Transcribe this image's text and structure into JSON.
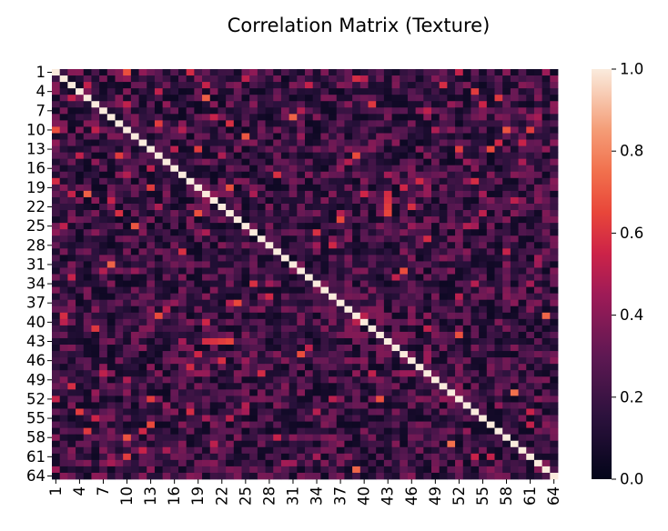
{
  "chart_data": {
    "type": "heatmap",
    "title": "Correlation Matrix (Texture)",
    "xlabel": "",
    "ylabel": "",
    "size": 64,
    "row_labels_shown": [
      "1",
      "4",
      "7",
      "10",
      "13",
      "16",
      "19",
      "22",
      "25",
      "28",
      "31",
      "34",
      "37",
      "40",
      "43",
      "46",
      "49",
      "52",
      "55",
      "58",
      "61",
      "64"
    ],
    "col_labels_shown": [
      "1",
      "4",
      "7",
      "10",
      "13",
      "16",
      "19",
      "22",
      "25",
      "28",
      "31",
      "34",
      "37",
      "40",
      "43",
      "46",
      "49",
      "52",
      "55",
      "58",
      "61",
      "64"
    ],
    "diagonal_value": 1.0,
    "value_range": [
      0.0,
      1.0
    ],
    "colormap": "rocket",
    "colorbar": {
      "ticks": [
        0.0,
        0.2,
        0.4,
        0.6,
        0.8,
        1.0
      ],
      "tick_labels": [
        "0.0",
        "0.2",
        "0.4",
        "0.6",
        "0.8",
        "1.0"
      ]
    },
    "value_note": "Off-diagonal correlations mostly lie between 0.0 and 0.5, with scattered cells reaching about 0.6–0.75; cell-level values are approximated."
  }
}
